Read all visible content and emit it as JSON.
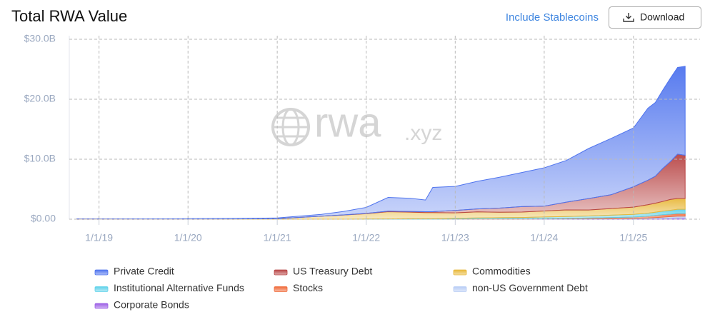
{
  "header": {
    "title": "Total RWA Value",
    "link": "Include Stablecoins",
    "button": "Download"
  },
  "chart_data": {
    "type": "stacked-area",
    "watermark": [
      "rwa",
      ".xyz"
    ],
    "x": [
      "10/1/18",
      "1/1/19",
      "7/1/19",
      "1/1/20",
      "7/1/20",
      "1/1/21",
      "4/1/21",
      "7/1/21",
      "10/1/21",
      "1/1/22",
      "4/1/22",
      "7/1/22",
      "9/1/22",
      "10/1/22",
      "1/1/23",
      "4/1/23",
      "7/1/23",
      "10/1/23",
      "1/1/24",
      "4/1/24",
      "7/1/24",
      "10/1/24",
      "1/1/25",
      "3/1/25",
      "4/1/25",
      "5/1/25",
      "6/1/25",
      "7/1/25",
      "8/1/25"
    ],
    "xlim": [
      "9/1/18",
      "10/1/25"
    ],
    "xticks": [
      "1/1/19",
      "1/1/20",
      "1/1/21",
      "1/1/22",
      "1/1/23",
      "1/1/24",
      "1/1/25"
    ],
    "ylim": [
      0,
      30
    ],
    "yticks": [
      {
        "value": 0,
        "label": "$0.00"
      },
      {
        "value": 10,
        "label": "$10.0B"
      },
      {
        "value": 20,
        "label": "$20.0B"
      },
      {
        "value": 30,
        "label": "$30.0B"
      }
    ],
    "grid": true,
    "series": [
      {
        "name": "Private Credit",
        "color": "#4f74ee",
        "values": [
          0.03,
          0.03,
          0.03,
          0.05,
          0.07,
          0.1,
          0.2,
          0.3,
          0.58,
          1.0,
          2.3,
          2.2,
          1.95,
          4.05,
          4.0,
          4.6,
          5.15,
          5.7,
          6.4,
          6.95,
          8.35,
          9.4,
          9.8,
          12.0,
          12.3,
          13.05,
          13.9,
          14.45,
          14.85
        ]
      },
      {
        "name": "US Treasury Debt",
        "color": "#b84545",
        "values": [
          0,
          0,
          0,
          0,
          0,
          0,
          0,
          0,
          0.02,
          0.05,
          0.08,
          0.1,
          0.15,
          0.15,
          0.4,
          0.5,
          0.7,
          0.9,
          0.8,
          1.3,
          1.9,
          2.3,
          3.4,
          4.1,
          4.5,
          5.5,
          6.3,
          7.4,
          7.2
        ]
      },
      {
        "name": "Commodities",
        "color": "#e8b83a",
        "values": [
          0.02,
          0.02,
          0.03,
          0.03,
          0.05,
          0.1,
          0.3,
          0.5,
          0.7,
          0.9,
          1.2,
          1.1,
          1.0,
          1.0,
          0.9,
          1.0,
          0.9,
          0.9,
          1.0,
          1.1,
          1.0,
          1.1,
          1.2,
          1.4,
          1.5,
          1.6,
          1.8,
          1.8,
          1.8
        ]
      },
      {
        "name": "Institutional Alternative Funds",
        "color": "#5fd2ea",
        "values": [
          0,
          0,
          0,
          0,
          0,
          0,
          0,
          0,
          0,
          0.02,
          0.05,
          0.08,
          0.1,
          0.1,
          0.12,
          0.15,
          0.18,
          0.2,
          0.25,
          0.3,
          0.35,
          0.4,
          0.45,
          0.5,
          0.55,
          0.6,
          0.65,
          0.7,
          0.7
        ]
      },
      {
        "name": "Stocks",
        "color": "#f06a3a",
        "values": [
          0,
          0,
          0,
          0,
          0,
          0,
          0,
          0,
          0,
          0,
          0,
          0,
          0,
          0,
          0.02,
          0.03,
          0.04,
          0.05,
          0.06,
          0.08,
          0.1,
          0.15,
          0.2,
          0.3,
          0.35,
          0.4,
          0.4,
          0.45,
          0.45
        ]
      },
      {
        "name": "non-US Government Debt",
        "color": "#b8cdf5",
        "values": [
          0,
          0,
          0,
          0,
          0,
          0,
          0,
          0,
          0,
          0,
          0,
          0,
          0,
          0,
          0,
          0,
          0,
          0,
          0.01,
          0.02,
          0.03,
          0.05,
          0.08,
          0.1,
          0.15,
          0.2,
          0.25,
          0.3,
          0.3
        ]
      },
      {
        "name": "Corporate Bonds",
        "color": "#9b5de5",
        "values": [
          0,
          0,
          0,
          0,
          0,
          0,
          0,
          0,
          0,
          0,
          0,
          0,
          0,
          0,
          0.02,
          0.03,
          0.03,
          0.04,
          0.05,
          0.05,
          0.06,
          0.07,
          0.08,
          0.1,
          0.12,
          0.15,
          0.18,
          0.2,
          0.2
        ]
      }
    ]
  }
}
